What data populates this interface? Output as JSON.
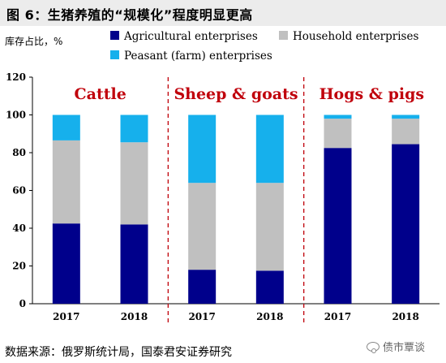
{
  "title": "图 6：生猪养殖的“规模化”程度明显更高",
  "source": "数据来源：俄罗斯统计局，国泰君安证券研究",
  "watermark": "债市覃谈",
  "chart_data": {
    "type": "bar",
    "stacked": true,
    "ylabel": "库存占比，%",
    "ylim": [
      0,
      120
    ],
    "yticks": [
      0,
      20,
      40,
      60,
      80,
      100,
      120
    ],
    "groups": [
      {
        "name": "Cattle",
        "categories": [
          "2017",
          "2018"
        ]
      },
      {
        "name": "Sheep & goats",
        "categories": [
          "2017",
          "2018"
        ]
      },
      {
        "name": "Hogs & pigs",
        "categories": [
          "2017",
          "2018"
        ]
      }
    ],
    "series": [
      {
        "name": "Agricultural enterprises",
        "color": "#00008b",
        "values": [
          42.5,
          42,
          18,
          17.5,
          82.5,
          84.5
        ]
      },
      {
        "name": "Household enterprises",
        "color": "#c0c0c0",
        "values": [
          44,
          43.5,
          46,
          46.5,
          15.5,
          13.5
        ]
      },
      {
        "name": "Peasant (farm) enterprises",
        "color": "#16b0ec",
        "values": [
          13.5,
          14.5,
          36,
          36,
          2,
          2
        ]
      }
    ],
    "legend": "top",
    "group_label_color": "#c0000b",
    "separator_color": "#c0000b",
    "grid": false
  }
}
